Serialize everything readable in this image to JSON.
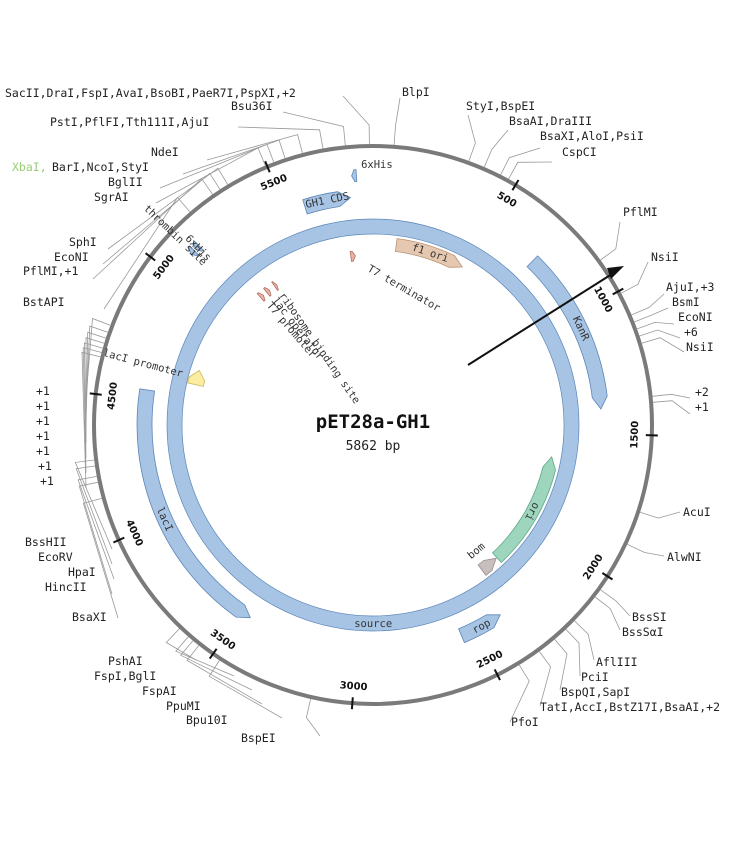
{
  "plasmid": {
    "name": "pET28a-GH1",
    "length_label": "5862 bp",
    "length": 5862
  },
  "colors": {
    "backbone": "#7a7a7a",
    "cds": "#a7c4e4",
    "cds_stroke": "#5b86b8",
    "ori": "#9ed6bd",
    "f1ori": "#e6c8b0",
    "bom": "#c8bebe",
    "promoter_yellow": "#fbeea0",
    "arrow": "#111111",
    "xbai": "#9acd78"
  },
  "ticks": [
    "500",
    "1000",
    "1500",
    "2000",
    "2500",
    "3000",
    "3500",
    "4000",
    "4500",
    "5000",
    "5500"
  ],
  "features": [
    {
      "name": "GH1 CDS",
      "kind": "cds",
      "start": 5580,
      "end": 5770,
      "strand": 1,
      "ring": 0
    },
    {
      "name": "KanR",
      "kind": "cds",
      "start": 720,
      "end": 1400,
      "strand": 1,
      "ring": 0
    },
    {
      "name": "lacI",
      "kind": "cds",
      "start": 3460,
      "end": 4540,
      "strand": -1,
      "ring": 0
    },
    {
      "name": "rop",
      "kind": "cds",
      "start": 2380,
      "end": 2560,
      "strand": -1,
      "ring": 0
    },
    {
      "name": "6xHis",
      "kind": "tag",
      "start": 5782,
      "end": 5800,
      "strand": -1,
      "ring": 0
    },
    {
      "name": "6xHis",
      "kind": "tag",
      "start": 5125,
      "end": 5143,
      "strand": -1,
      "ring": 0
    },
    {
      "name": "thrombin site",
      "kind": "tag",
      "start": 5100,
      "end": 5118,
      "strand": -1,
      "ring": 0
    },
    {
      "name": "source",
      "kind": "source",
      "start": 0,
      "end": 5862,
      "strand": 1,
      "ring": 1
    },
    {
      "name": "f1 ori",
      "kind": "f1ori",
      "start": 120,
      "end": 480,
      "strand": 1,
      "ring": 2
    },
    {
      "name": "ori",
      "kind": "ori",
      "start": 1630,
      "end": 2230,
      "strand": -1,
      "ring": 2
    },
    {
      "name": "bom",
      "kind": "bom",
      "start": 2235,
      "end": 2330,
      "strand": -1,
      "ring": 2
    },
    {
      "name": "lacI promoter",
      "kind": "promoter",
      "start": 4605,
      "end": 4680,
      "strand": 1,
      "ring": 2
    },
    {
      "name": "T7 promoter",
      "kind": "small",
      "start": 5188,
      "end": 5208,
      "strand": 1,
      "ring": 2
    },
    {
      "name": "lac operator",
      "kind": "small",
      "start": 5232,
      "end": 5252,
      "strand": 1,
      "ring": 2
    },
    {
      "name": "ribosome binding site",
      "kind": "small",
      "start": 5287,
      "end": 5300,
      "strand": 1,
      "ring": 2
    },
    {
      "name": "T7 terminator",
      "kind": "small",
      "start": 5740,
      "end": 5765,
      "strand": 1,
      "ring": 2
    }
  ],
  "sites": {
    "top_left": [
      "SacII,DraI,FspI,AvaI,BsoBI,PaeR7I,PspXI,+2",
      "Bsu36I",
      "PstI,PflFI,Tth111I,AjuI",
      "NdeI",
      "BarI,NcoI,StyI",
      "BglII",
      "SgrAI"
    ],
    "xbai": "XbaI,",
    "left": [
      "SphI",
      "EcoNI",
      "PflMI,+1",
      "BstAPI",
      "+1",
      "+1",
      "+1",
      "+1",
      "+1",
      "+1",
      "+1"
    ],
    "left_bottom": [
      "BssHII",
      "EcoRV",
      "HpaI",
      "HincII",
      "BsaXI"
    ],
    "bottom_left": [
      "PshAI",
      "FspI,BglI",
      "FspAI",
      "PpuMI",
      "Bpu10I",
      "BspEI"
    ],
    "top_right": [
      "BlpI",
      "StyI,BspEI",
      "BsaAI,DraIII",
      "BsaXI,AloI,PsiI",
      "CspCI"
    ],
    "right": [
      "PflMI",
      "NsiI",
      "AjuI,+3",
      "BsmI",
      "EcoNI",
      "+6",
      "NsiI",
      "+2",
      "+1",
      "AcuI",
      "AlwNI"
    ],
    "bottom_right": [
      "BssSI",
      "BssSαI",
      "AflIII",
      "PciI",
      "BspQI,SapI",
      "TatI,AccI,BstZ17I,BsaAI,+2",
      "PfoI"
    ]
  }
}
